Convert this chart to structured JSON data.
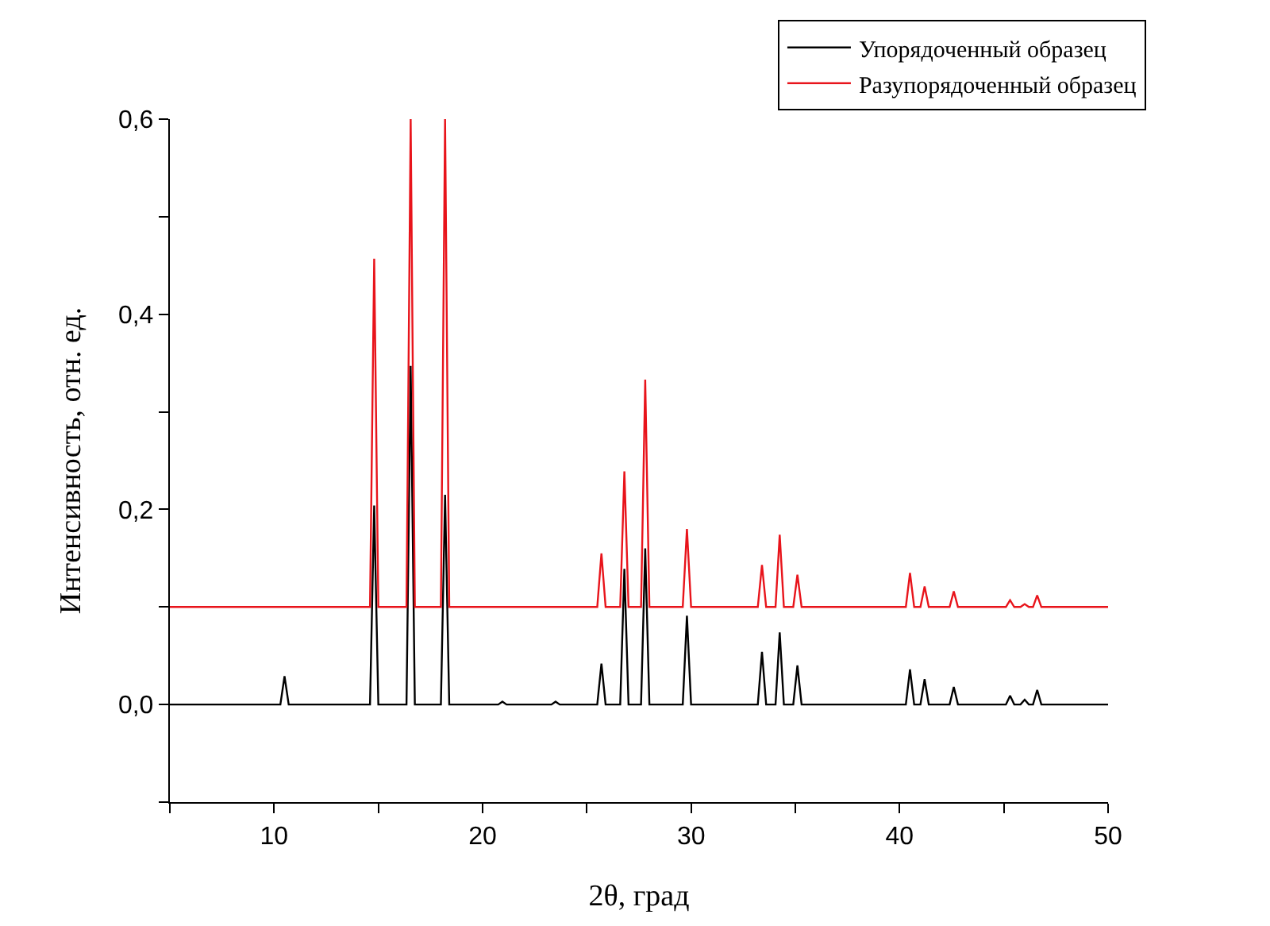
{
  "chart_data": {
    "type": "line",
    "xlabel": "2θ, град",
    "ylabel": "Интенсивность, отн. ед.",
    "xlim": [
      5,
      50
    ],
    "xticks": [
      {
        "value": 5,
        "label": null
      },
      10,
      {
        "value": 15,
        "label": null
      },
      20,
      {
        "value": 25,
        "label": null
      },
      30,
      {
        "value": 35,
        "label": null
      },
      40,
      {
        "value": 45,
        "label": null
      },
      50
    ],
    "ylim": [
      -0.1,
      0.6
    ],
    "yticks": [
      {
        "value": -0.1,
        "label": null
      },
      {
        "value": 0.0,
        "label": "0,0"
      },
      {
        "value": 0.1,
        "label": null
      },
      {
        "value": 0.2,
        "label": "0,2"
      },
      {
        "value": 0.3,
        "label": null
      },
      {
        "value": 0.4,
        "label": "0,4"
      },
      {
        "value": 0.5,
        "label": null
      },
      {
        "value": 0.6,
        "label": "0,6"
      }
    ],
    "legend": "top right",
    "marker": "none",
    "line_style": "solid",
    "series": [
      {
        "name": "Упорядоченный образец",
        "color": "#000000",
        "x": [
          5,
          10.3,
          10.5,
          10.7,
          14.6,
          14.8,
          15.0,
          16.35,
          16.55,
          16.75,
          18.0,
          18.2,
          18.4,
          20.75,
          20.95,
          21.15,
          23.3,
          23.5,
          23.7,
          25.5,
          25.7,
          25.9,
          26.6,
          26.8,
          27.0,
          27.6,
          27.8,
          28.0,
          29.6,
          29.8,
          30.0,
          33.2,
          33.4,
          33.6,
          34.05,
          34.25,
          34.45,
          34.9,
          35.1,
          35.3,
          40.3,
          40.5,
          40.7,
          41.0,
          41.2,
          41.4,
          42.4,
          42.6,
          42.8,
          45.1,
          45.3,
          45.5,
          45.8,
          46.0,
          46.2,
          46.4,
          46.6,
          46.8,
          50
        ],
        "values": [
          0,
          0,
          0.029,
          0,
          0,
          0.204,
          0,
          0,
          0.347,
          0,
          0,
          0.215,
          0,
          0,
          0.003,
          0,
          0,
          0.003,
          0,
          0,
          0.042,
          0,
          0,
          0.139,
          0,
          0,
          0.16,
          0,
          0,
          0.091,
          0,
          0,
          0.054,
          0,
          0,
          0.074,
          0,
          0,
          0.04,
          0,
          0,
          0.036,
          0,
          0,
          0.026,
          0,
          0,
          0.018,
          0,
          0,
          0.009,
          0,
          0,
          0.005,
          0,
          0,
          0.015,
          0,
          0
        ]
      },
      {
        "name": "Разупорядоченный образец",
        "color": "#e8141b",
        "x": [
          5,
          10.3,
          10.5,
          10.7,
          14.6,
          14.8,
          15.0,
          16.35,
          16.55,
          16.75,
          18.0,
          18.2,
          18.4,
          20.75,
          20.95,
          21.15,
          23.3,
          23.5,
          23.7,
          25.5,
          25.7,
          25.9,
          26.6,
          26.8,
          27.0,
          27.6,
          27.8,
          28.0,
          29.6,
          29.8,
          30.0,
          33.2,
          33.4,
          33.6,
          34.05,
          34.25,
          34.45,
          34.9,
          35.1,
          35.3,
          40.3,
          40.5,
          40.7,
          41.0,
          41.2,
          41.4,
          42.4,
          42.6,
          42.8,
          45.1,
          45.3,
          45.5,
          45.8,
          46.0,
          46.2,
          46.4,
          46.6,
          46.8,
          50
        ],
        "values": [
          0.1,
          0.1,
          0.1,
          0.1,
          0.1,
          0.457,
          0.1,
          0.1,
          0.6,
          0.1,
          0.1,
          0.6,
          0.1,
          0.1,
          0.1,
          0.1,
          0.1,
          0.1,
          0.1,
          0.1,
          0.155,
          0.1,
          0.1,
          0.239,
          0.1,
          0.1,
          0.333,
          0.1,
          0.1,
          0.18,
          0.1,
          0.1,
          0.143,
          0.1,
          0.1,
          0.174,
          0.1,
          0.1,
          0.133,
          0.1,
          0.1,
          0.135,
          0.1,
          0.1,
          0.121,
          0.1,
          0.1,
          0.116,
          0.1,
          0.1,
          0.107,
          0.1,
          0.1,
          0.103,
          0.1,
          0.1,
          0.112,
          0.1,
          0.1
        ]
      }
    ]
  }
}
